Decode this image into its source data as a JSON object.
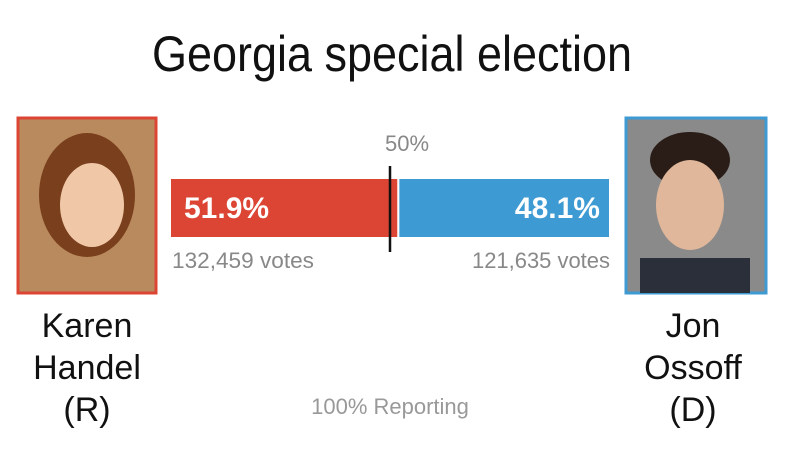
{
  "chart_data": {
    "type": "bar",
    "title": "Georgia special election",
    "note": "100% Reporting",
    "xlim": [
      0,
      100
    ],
    "reference": {
      "value": 50,
      "label": "50%"
    },
    "series": [
      {
        "name": "Karen Handel",
        "party": "(R)",
        "color": "#dc4534",
        "values": [
          51.9
        ],
        "value_labels": [
          "51.9%"
        ],
        "votes_label": "132,459 votes"
      },
      {
        "name": "Jon Ossoff",
        "party": "(D)",
        "color": "#3d9ad2",
        "values": [
          48.1
        ],
        "value_labels": [
          "48.1%"
        ],
        "votes_label": "121,635 votes"
      }
    ]
  }
}
